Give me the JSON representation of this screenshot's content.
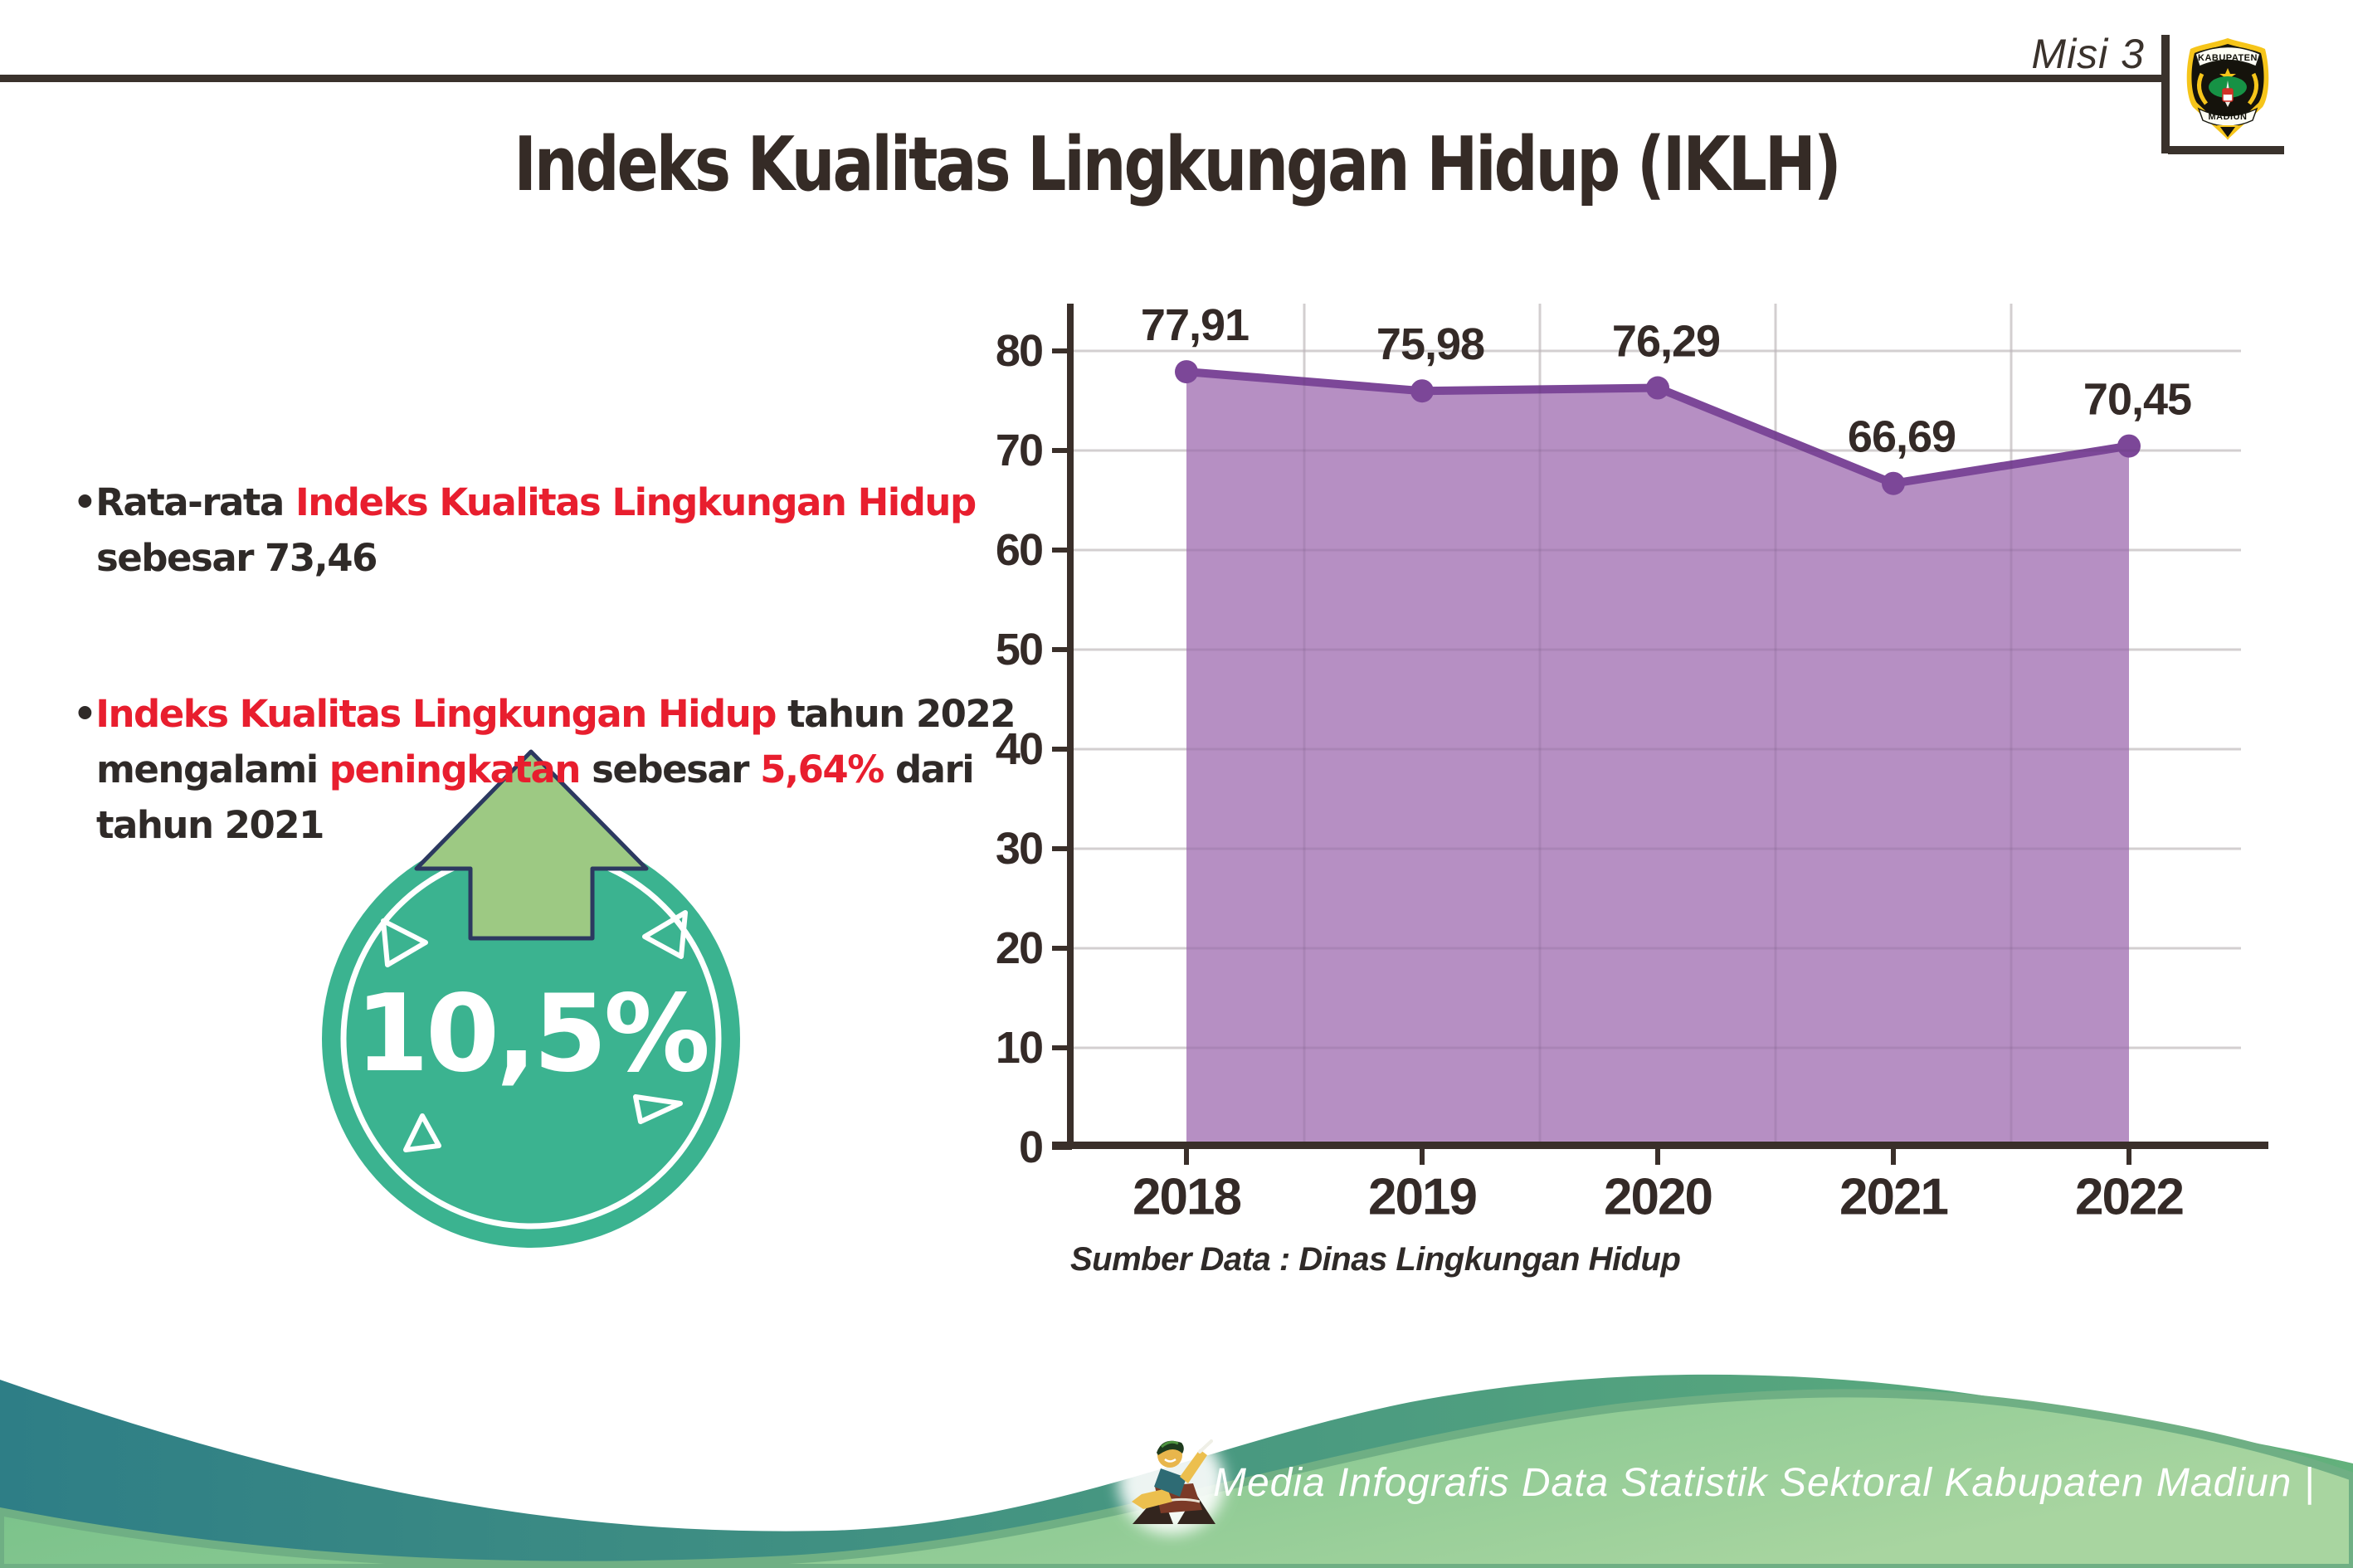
{
  "header": {
    "misi": "Misi 3",
    "title": "Indeks Kualitas Lingkungan Hidup (IKLH)",
    "logo": {
      "top": "KABUPATEN",
      "bottom": "MADIUN"
    }
  },
  "bullets": {
    "marker": "•",
    "b1_l1_black": "Rata-rata ",
    "b1_l1_red": "Indeks Kualitas Lingkungan Hidup",
    "b1_l2_black": "sebesar 73,46",
    "b2_l1_red": "Indeks Kualitas Lingkungan Hidup",
    "b2_l1_black": " tahun 2022",
    "b2_l2_black1": "mengalami ",
    "b2_l2_red1": "peningkatan",
    "b2_l2_black2": " sebesar ",
    "b2_l2_red2": "5,64%",
    "b2_l2_black3": " dari",
    "b2_l3_black": "tahun 2021"
  },
  "badge": {
    "value": "10,5%"
  },
  "chart_data": {
    "type": "area",
    "title": "",
    "xlabel": "",
    "ylabel": "",
    "categories": [
      "2018",
      "2019",
      "2020",
      "2021",
      "2022"
    ],
    "values": [
      77.91,
      75.98,
      76.29,
      66.69,
      70.45
    ],
    "value_labels": [
      "77,91",
      "75,98",
      "76,29",
      "66,69",
      "70,45"
    ],
    "ylim": [
      0,
      80
    ],
    "ytick_step": 10,
    "grid": true,
    "legend": "none",
    "source": "Sumber Data : Dinas Lingkungan Hidup",
    "colors": {
      "fill": "#b38ac1",
      "line": "#7c4798",
      "label": "#342a27",
      "axis": "#3a2f2a"
    }
  },
  "footer": {
    "text": "Media Infografis Data Statistik Sektoral Kabupaten Madiun |"
  }
}
